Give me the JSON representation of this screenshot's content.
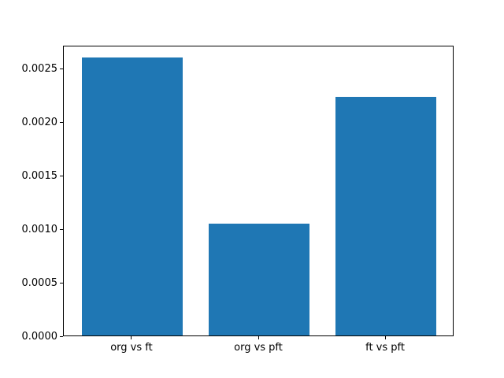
{
  "chart_data": {
    "type": "bar",
    "title": "",
    "xlabel": "",
    "ylabel": "",
    "categories": [
      "org vs ft",
      "org vs pft",
      "ft vs pft"
    ],
    "values": [
      0.0026,
      0.00105,
      0.00223
    ],
    "ylim": [
      0,
      0.00272
    ],
    "yticks": [
      0.0,
      0.0005,
      0.001,
      0.0015,
      0.002,
      0.0025
    ],
    "ytick_labels": [
      "0.0000",
      "0.0005",
      "0.0010",
      "0.0015",
      "0.0020",
      "0.0025"
    ],
    "bar_width_fraction": 0.8,
    "x_axis_padding": 0.54,
    "bar_color": "#1f77b4",
    "spine_color": "#000000",
    "background_color": "#ffffff",
    "grid": false,
    "legend": null
  }
}
